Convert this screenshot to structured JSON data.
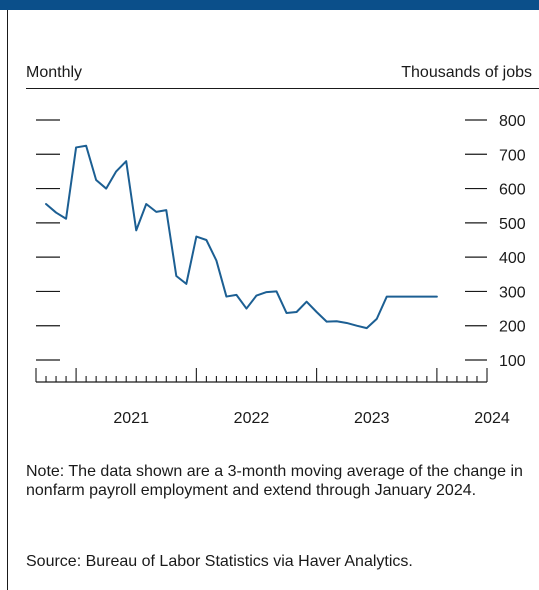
{
  "header": {
    "unit_left": "Monthly",
    "unit_right": "Thousands of jobs"
  },
  "colors": {
    "brand_bar": "#0b4f8a",
    "line": "#1c5f93",
    "ink": "#1a1a1a"
  },
  "chart_data": {
    "type": "line",
    "title": "",
    "xlabel": "",
    "ylabel": "Thousands of jobs",
    "ylim": [
      0,
      850
    ],
    "y_ticks": [
      100,
      200,
      300,
      400,
      500,
      600,
      700,
      800
    ],
    "x_tick_labels": [
      "2021",
      "2022",
      "2023",
      "2024"
    ],
    "x_range": [
      "2020-09",
      "2024-06"
    ],
    "grid": false,
    "series": [
      {
        "x": [
          "2020-10",
          "2020-11",
          "2020-12",
          "2021-01",
          "2021-02",
          "2021-03",
          "2021-04",
          "2021-05",
          "2021-06",
          "2021-07",
          "2021-08",
          "2021-09",
          "2021-10",
          "2021-11",
          "2021-12",
          "2022-01",
          "2022-02",
          "2022-03",
          "2022-04",
          "2022-05",
          "2022-06",
          "2022-07",
          "2022-08",
          "2022-09",
          "2022-10",
          "2022-11",
          "2022-12",
          "2023-01",
          "2023-02",
          "2023-03",
          "2023-04",
          "2023-05",
          "2023-06",
          "2023-07",
          "2023-08",
          "2023-09",
          "2023-10",
          "2023-11",
          "2023-12",
          "2024-01"
        ],
        "values": [
          555,
          530,
          512,
          720,
          725,
          625,
          600,
          650,
          680,
          478,
          555,
          532,
          537,
          345,
          322,
          460,
          450,
          390,
          285,
          290,
          250,
          288,
          298,
          300,
          237,
          240,
          270,
          240,
          212,
          213,
          208,
          200,
          193,
          220,
          285,
          285,
          285,
          285,
          285,
          285
        ]
      }
    ]
  },
  "footer": {
    "note": "Note: The data shown are a 3-month moving average of the change in nonfarm payroll employment and extend through January 2024.",
    "source": "Source: Bureau of Labor Statistics via Haver Analytics."
  }
}
